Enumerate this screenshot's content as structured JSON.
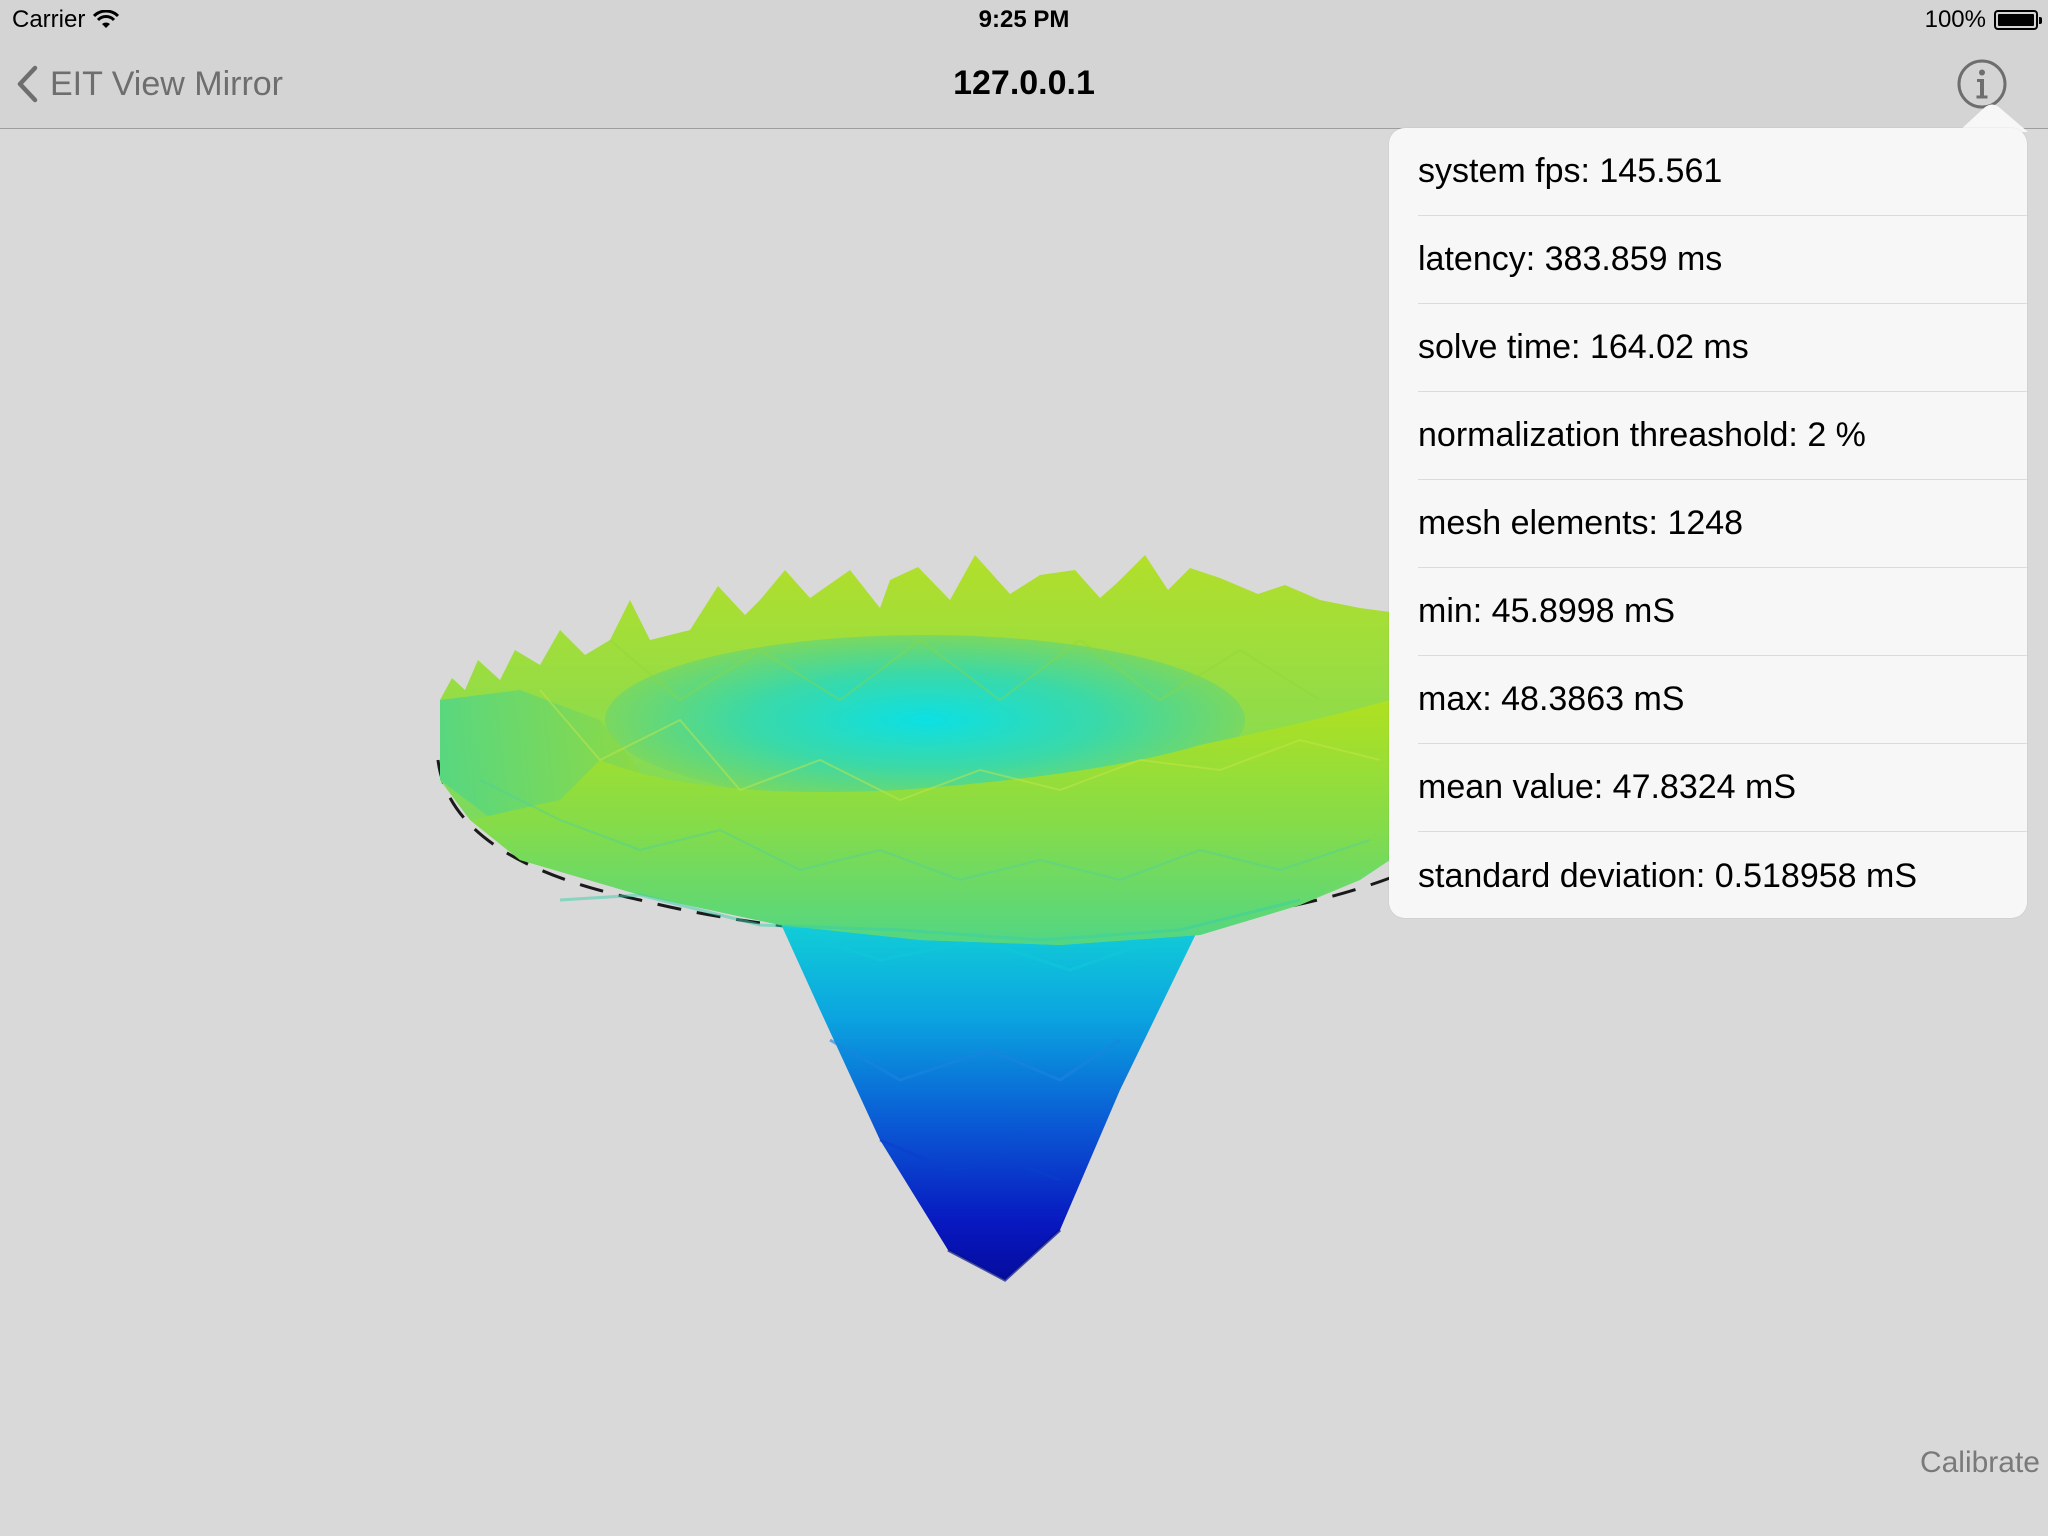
{
  "status_bar": {
    "carrier": "Carrier",
    "time": "9:25 PM",
    "battery": "100%",
    "icons": [
      "wifi-icon",
      "battery-icon"
    ]
  },
  "nav_bar": {
    "back_label": "EIT View Mirror",
    "title": "127.0.0.1",
    "icons": [
      "chevron-left-icon",
      "info-icon"
    ]
  },
  "stats": [
    "system fps: 145.561",
    "latency: 383.859 ms",
    "solve time: 164.02 ms",
    "normalization threashold: 2 %",
    "mesh elements: 1248",
    "min: 45.8998 mS",
    "max: 48.3863 mS",
    "mean value: 47.8324 mS",
    "standard deviation: 0.518958 mS"
  ],
  "calibrate_label": "Calibrate",
  "colors": {
    "background": "#d9d9d9",
    "bar": "#d4d4d4",
    "popover": "#f7f7f7",
    "mesh_top": "#a6dc2a",
    "mesh_mid": "#39d7b8",
    "mesh_low": "#0a63d6",
    "mesh_bottom": "#0a14b4"
  }
}
